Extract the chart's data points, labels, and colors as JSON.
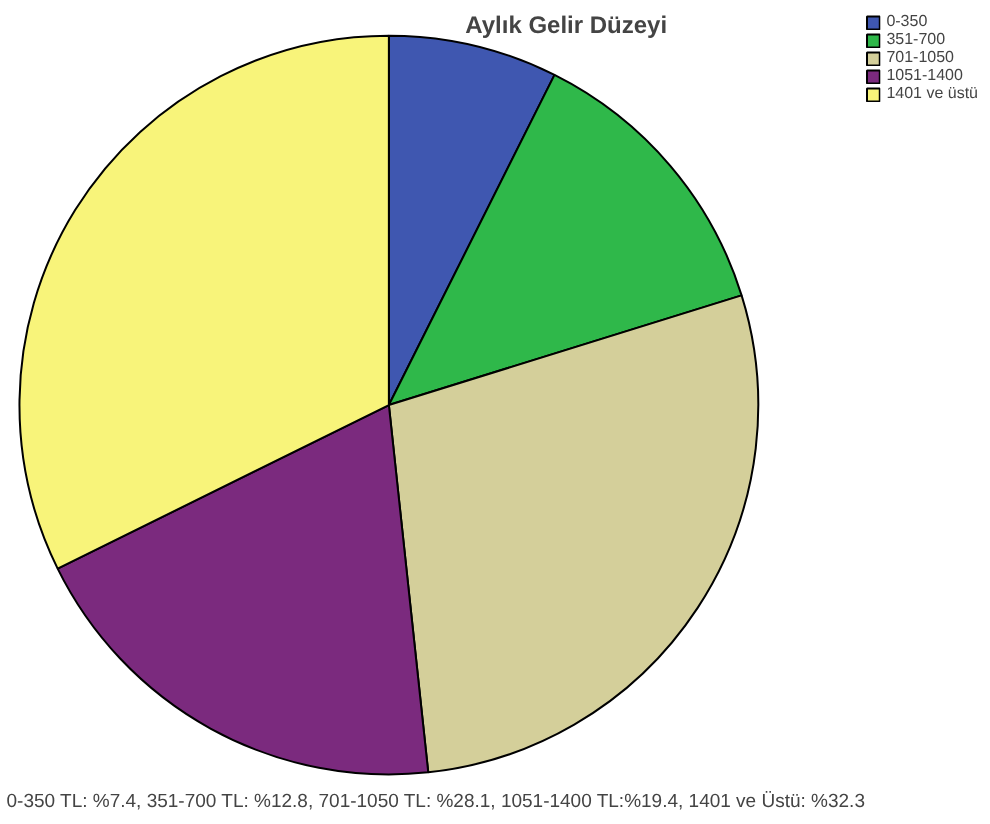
{
  "chart_data": {
    "type": "pie",
    "title": "Aylık Gelir Düzeyi",
    "categories": [
      "0-350",
      "351-700",
      "701-1050",
      "1051-1400",
      "1401 ve üstü"
    ],
    "values": [
      7.4,
      12.8,
      28.1,
      19.4,
      32.3
    ],
    "colors": [
      "#3f57b0",
      "#2fb84a",
      "#d4cf9a",
      "#7b2a7e",
      "#f8f47a"
    ],
    "legend": "top right",
    "annotations": [
      "0-350 TL: %7.4, 351-700 TL: %12.8, 701-1050 TL: %28.1, 1051-1400 TL:%19.4, 1401 ve Üstü: %32.3"
    ]
  }
}
